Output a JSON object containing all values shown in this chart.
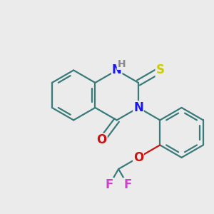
{
  "background_color": "#ebebeb",
  "bond_color": "#3a7a7a",
  "bond_width": 1.6,
  "atom_colors": {
    "N": "#1a1aee",
    "O": "#cc1111",
    "S": "#cccc00",
    "F": "#cc44cc",
    "H": "#888888"
  },
  "font_size": 12,
  "font_size_H": 10,
  "xlim": [
    -1.6,
    1.6
  ],
  "ylim": [
    -1.6,
    1.6
  ]
}
